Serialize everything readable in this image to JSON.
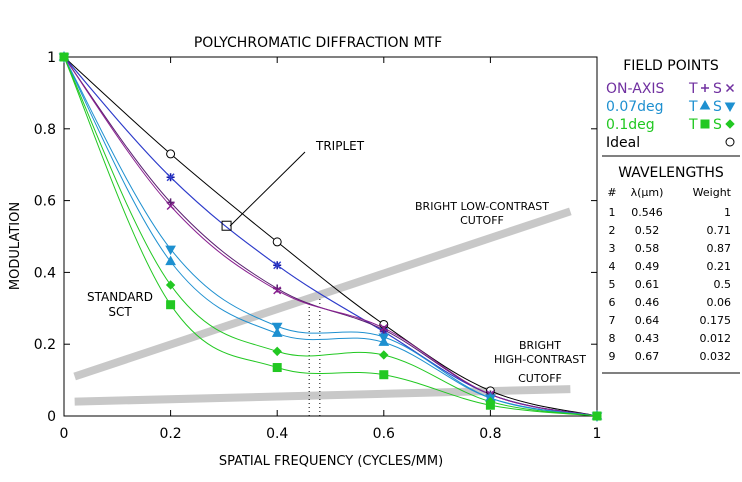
{
  "chart_data": {
    "type": "line",
    "title": "POLYCHROMATIC DIFFRACTION MTF",
    "xlabel": "SPATIAL FREQUENCY (CYCLES/MM)",
    "ylabel": "MODULATION",
    "xlim": [
      0,
      1
    ],
    "ylim": [
      0,
      1
    ],
    "x_ticks": [
      "0",
      "0.2",
      "0.4",
      "0.6",
      "0.8",
      "1"
    ],
    "y_ticks": [
      "0",
      "0.2",
      "0.4",
      "0.6",
      "0.8",
      "1"
    ],
    "grid": false,
    "series": [
      {
        "key": "ideal",
        "color": "#000000",
        "marker": "circle",
        "x": [
          0,
          0.2,
          0.4,
          0.6,
          0.8,
          1
        ],
        "y": [
          1,
          0.73,
          0.485,
          0.255,
          0.07,
          0
        ]
      },
      {
        "key": "onaxis_t",
        "color": "#1a1aa0",
        "marker": "plus",
        "x": [
          0,
          0.2,
          0.4,
          0.6,
          0.8,
          1
        ],
        "y": [
          1,
          0.665,
          0.42,
          0.235,
          0.06,
          0
        ]
      },
      {
        "key": "onaxis_s",
        "color": "#3040d0",
        "marker": "x",
        "x": [
          0,
          0.2,
          0.4,
          0.6,
          0.8,
          1
        ],
        "y": [
          1,
          0.665,
          0.42,
          0.235,
          0.06,
          0
        ]
      },
      {
        "key": "triplet_t",
        "color": "#5a2070",
        "marker": "plus",
        "x": [
          0,
          0.2,
          0.4,
          0.6,
          0.8,
          1
        ],
        "y": [
          1,
          0.595,
          0.355,
          0.24,
          0.06,
          0
        ]
      },
      {
        "key": "triplet_s",
        "color": "#8a2090",
        "marker": "x",
        "x": [
          0,
          0.2,
          0.4,
          0.6,
          0.8,
          1
        ],
        "y": [
          1,
          0.585,
          0.35,
          0.245,
          0.06,
          0
        ]
      },
      {
        "key": "f007_t",
        "color": "#1e90d0",
        "marker": "tri-up",
        "x": [
          0,
          0.2,
          0.4,
          0.6,
          0.8,
          1
        ],
        "y": [
          1,
          0.43,
          0.23,
          0.205,
          0.05,
          0
        ]
      },
      {
        "key": "f007_s",
        "color": "#1e90d0",
        "marker": "tri-down",
        "x": [
          0,
          0.2,
          0.4,
          0.6,
          0.8,
          1
        ],
        "y": [
          1,
          0.465,
          0.25,
          0.22,
          0.05,
          0
        ]
      },
      {
        "key": "f01_t",
        "color": "#22c822",
        "marker": "square",
        "x": [
          0,
          0.2,
          0.4,
          0.6,
          0.8,
          1
        ],
        "y": [
          1,
          0.31,
          0.135,
          0.115,
          0.03,
          0
        ]
      },
      {
        "key": "f01_s",
        "color": "#22c822",
        "marker": "diamond",
        "x": [
          0,
          0.2,
          0.4,
          0.6,
          0.8,
          1
        ],
        "y": [
          1,
          0.365,
          0.18,
          0.17,
          0.04,
          0
        ]
      }
    ],
    "cutoff_lines": [
      {
        "key": "low",
        "color": "#c8c8c8",
        "x": [
          0.02,
          0.95
        ],
        "y": [
          0.11,
          0.57
        ]
      },
      {
        "key": "high",
        "color": "#c8c8c8",
        "x": [
          0.02,
          0.95
        ],
        "y": [
          0.04,
          0.075
        ]
      }
    ],
    "dotted_lines": [
      {
        "x": 0.46,
        "y": [
          0,
          0.32
        ]
      },
      {
        "x": 0.48,
        "y": [
          0,
          0.33
        ]
      }
    ],
    "triplet_callout": {
      "box_x": 0.305,
      "box_y": 0.53
    },
    "annotations": {
      "triplet": "TRIPLET",
      "bright_low_1": "BRIGHT LOW-CONTRAST",
      "bright_low_2": "CUTOFF",
      "standard_1": "STANDARD",
      "standard_2": "SCT",
      "bright_high_1": "BRIGHT",
      "bright_high_2": "HIGH-CONTRAST",
      "bright_high_3": "CUTOFF"
    }
  },
  "legend": {
    "field_title": "FIELD POINTS",
    "fields": [
      {
        "label": "ON-AXIS",
        "t": "T",
        "s": "S",
        "color": "#7030a0",
        "t_marker": "plus",
        "s_marker": "x"
      },
      {
        "label": "0.07deg",
        "t": "T",
        "s": "S",
        "color": "#1e90d0",
        "t_marker": "tri-up",
        "s_marker": "tri-down"
      },
      {
        "label": "0.1deg",
        "t": "T",
        "s": "S",
        "color": "#22c822",
        "t_marker": "square",
        "s_marker": "diamond"
      },
      {
        "label": "Ideal",
        "t": "",
        "s": "",
        "color": "#000000",
        "t_marker": "",
        "s_marker": "circle"
      }
    ],
    "wavelength_title": "WAVELENGTHS",
    "wl_headers": [
      "#",
      "λ(μm)",
      "Weight"
    ],
    "wavelengths": [
      [
        "1",
        "0.546",
        "1"
      ],
      [
        "2",
        "0.52",
        "0.71"
      ],
      [
        "3",
        "0.58",
        "0.87"
      ],
      [
        "4",
        "0.49",
        "0.21"
      ],
      [
        "5",
        "0.61",
        "0.5"
      ],
      [
        "6",
        "0.46",
        "0.06"
      ],
      [
        "7",
        "0.64",
        "0.175"
      ],
      [
        "8",
        "0.43",
        "0.012"
      ],
      [
        "9",
        "0.67",
        "0.032"
      ]
    ]
  }
}
